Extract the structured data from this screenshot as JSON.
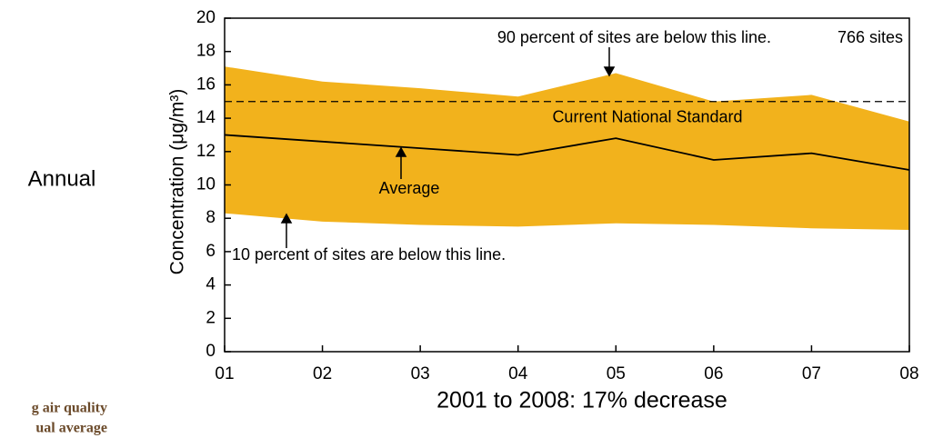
{
  "chart_data": {
    "type": "band",
    "side_label": "Annual",
    "y_label": "Concentration (μg/m³)",
    "x_label": "2001 to 2008: 17% decrease",
    "caption_fragments": [
      "g air quality",
      "ual average"
    ],
    "categories": [
      "01",
      "02",
      "03",
      "04",
      "05",
      "06",
      "07",
      "08"
    ],
    "band": {
      "color": "#f2b21c",
      "upper": [
        17.1,
        16.2,
        15.8,
        15.3,
        16.7,
        15.0,
        15.4,
        13.8
      ],
      "lower": [
        8.3,
        7.8,
        7.6,
        7.5,
        7.7,
        7.6,
        7.4,
        7.3
      ]
    },
    "line": {
      "color": "#000000",
      "values": [
        13.0,
        12.6,
        12.2,
        11.8,
        12.8,
        11.5,
        11.9,
        10.9
      ]
    },
    "reference_line": {
      "value": 15,
      "label": "Current National Standard"
    },
    "annotations": [
      "90 percent of sites are below this line.",
      "766 sites",
      "Average",
      "10 percent of sites are below this line."
    ],
    "ylim": [
      0,
      20
    ],
    "yticks": [
      0,
      2,
      4,
      6,
      8,
      10,
      12,
      14,
      16,
      18,
      20
    ]
  }
}
